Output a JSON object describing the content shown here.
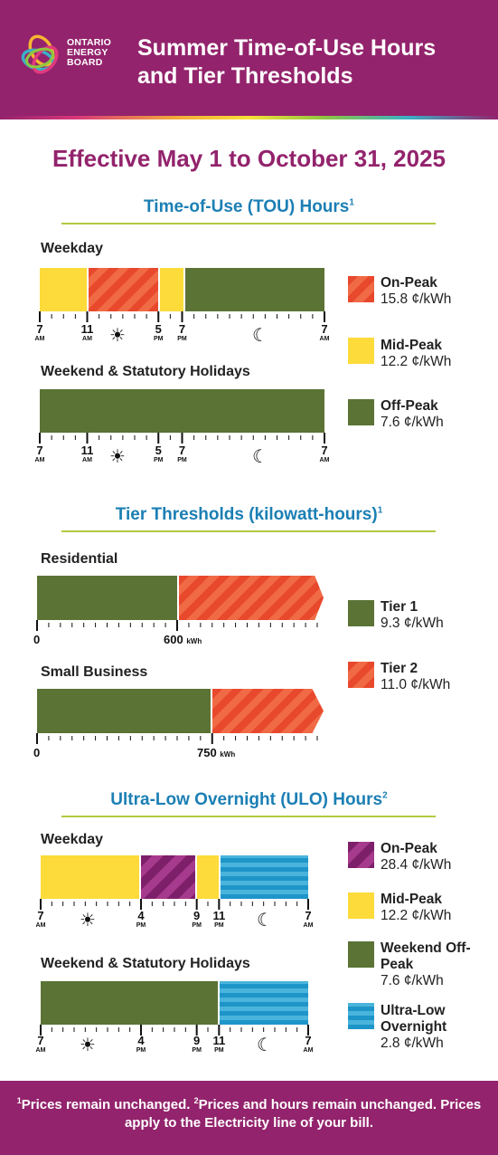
{
  "header": {
    "logo_lines": [
      "ONTARIO",
      "ENERGY",
      "BOARD"
    ],
    "title_line1": "Summer Time-of-Use Hours",
    "title_line2": "and Tier Thresholds"
  },
  "effective": "Effective May 1 to October 31, 2025",
  "tou": {
    "title": "Time-of-Use (TOU) Hours",
    "footnote": "1",
    "weekday_label": "Weekday",
    "weekend_label": "Weekend & Statutory Holidays",
    "weekday_segments": [
      {
        "type": "mid",
        "fraction": 0.1667
      },
      {
        "type": "on",
        "fraction": 0.25
      },
      {
        "type": "mid",
        "fraction": 0.0833
      },
      {
        "type": "off",
        "fraction": 0.5
      }
    ],
    "weekend_segments": [
      {
        "type": "off",
        "fraction": 1.0
      }
    ],
    "ticks": [
      {
        "n": "7",
        "u": "AM"
      },
      {
        "n": "11",
        "u": "AM"
      },
      {
        "n": "5",
        "u": "PM"
      },
      {
        "n": "7",
        "u": "PM"
      },
      {
        "n": "7",
        "u": "AM"
      }
    ],
    "legend": [
      {
        "name": "On-Peak",
        "price": "15.8 ¢/kWh",
        "color": "#e8482c"
      },
      {
        "name": "Mid-Peak",
        "price": "12.2 ¢/kWh",
        "color": "#fddb3a"
      },
      {
        "name": "Off-Peak",
        "price": "7.6 ¢/kWh",
        "color": "#5b7335"
      }
    ]
  },
  "tier": {
    "title": "Tier Thresholds (kilowatt-hours)",
    "footnote": "1",
    "residential_label": "Residential",
    "small_business_label": "Small Business",
    "residential_zero": "0",
    "residential_threshold": "600",
    "small_business_zero": "0",
    "small_business_threshold": "750",
    "unit": "kWh",
    "legend": [
      {
        "name": "Tier 1",
        "price": "9.3 ¢/kWh",
        "color": "#5b7335"
      },
      {
        "name": "Tier 2",
        "price": "11.0 ¢/kWh",
        "color": "#e8482c"
      }
    ]
  },
  "ulo": {
    "title": "Ultra-Low Overnight (ULO) Hours",
    "footnote": "2",
    "weekday_label": "Weekday",
    "weekend_label": "Weekend & Statutory Holidays",
    "weekday_segments": [
      {
        "type": "mid",
        "fraction": 0.375
      },
      {
        "type": "ulo-on",
        "fraction": 0.2083
      },
      {
        "type": "mid",
        "fraction": 0.0833
      },
      {
        "type": "ulo",
        "fraction": 0.3334
      }
    ],
    "weekend_segments": [
      {
        "type": "off",
        "fraction": 0.6667
      },
      {
        "type": "ulo",
        "fraction": 0.3333
      }
    ],
    "ticks": [
      {
        "n": "7",
        "u": "AM"
      },
      {
        "n": "4",
        "u": "PM"
      },
      {
        "n": "9",
        "u": "PM"
      },
      {
        "n": "11",
        "u": "PM"
      },
      {
        "n": "7",
        "u": "AM"
      }
    ],
    "legend": [
      {
        "name": "On-Peak",
        "price": "28.4 ¢/kWh",
        "color": "#7e1f6a"
      },
      {
        "name": "Mid-Peak",
        "price": "12.2 ¢/kWh",
        "color": "#fddb3a"
      },
      {
        "name": "Weekend Off-Peak",
        "price": "7.6 ¢/kWh",
        "color": "#5b7335"
      },
      {
        "name": "Ultra-Low Overnight",
        "price": "2.8 ¢/kWh",
        "color": "#1e95c8"
      }
    ]
  },
  "footer": {
    "sup1": "1",
    "text1": "Prices remain unchanged. ",
    "sup2": "2",
    "text2": "Prices and hours remain unchanged. Prices apply to the Electricity line of your bill."
  }
}
